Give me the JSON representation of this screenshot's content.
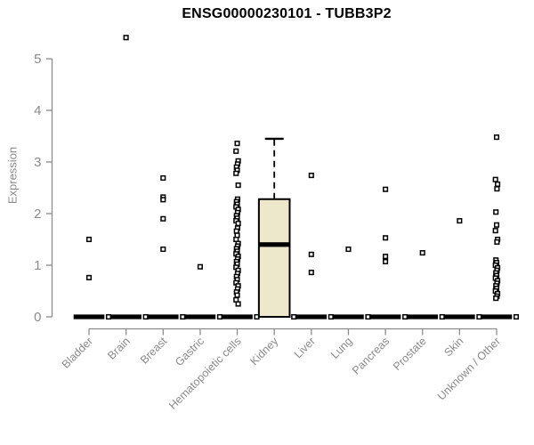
{
  "title": "ENSG00000230101 - TUBB3P2",
  "chart_data": {
    "type": "boxplot",
    "title": "ENSG00000230101 - TUBB3P2",
    "ylabel": "Expression",
    "xlabel": "",
    "axis_range_y": [
      0,
      5
    ],
    "yticks": [
      0,
      1,
      2,
      3,
      4,
      5
    ],
    "grid": false,
    "legend": false,
    "categories": [
      "Bladder",
      "Brain",
      "Breast",
      "Gastric",
      "Hematopoietic cells",
      "Kidney",
      "Liver",
      "Lung",
      "Pancreas",
      "Prostate",
      "Skin",
      "Unknown / Other"
    ],
    "series": [
      {
        "category": "Bladder",
        "box": {
          "whisker_low": 0,
          "q1": 0,
          "median": 0,
          "q3": 0,
          "whisker_high": 0
        },
        "points": [
          1.5,
          0.76,
          0
        ]
      },
      {
        "category": "Brain",
        "box": {
          "whisker_low": 0,
          "q1": 0,
          "median": 0,
          "q3": 0,
          "whisker_high": 0
        },
        "points": [
          5.41,
          0
        ]
      },
      {
        "category": "Breast",
        "box": {
          "whisker_low": 0,
          "q1": 0,
          "median": 0,
          "q3": 0,
          "whisker_high": 0
        },
        "points": [
          2.69,
          2.32,
          2.27,
          1.9,
          1.31,
          0
        ]
      },
      {
        "category": "Gastric",
        "box": {
          "whisker_low": 0,
          "q1": 0,
          "median": 0,
          "q3": 0,
          "whisker_high": 0
        },
        "points": [
          0.97,
          0
        ]
      },
      {
        "category": "Hematopoietic cells",
        "box": {
          "whisker_low": 0,
          "q1": 0,
          "median": 0,
          "q3": 0,
          "whisker_high": 0
        },
        "points": [
          3.36,
          3.21,
          3.02,
          2.96,
          2.9,
          2.84,
          2.78,
          2.55,
          2.28,
          2.23,
          2.18,
          2.13,
          2.08,
          2.02,
          1.96,
          1.91,
          1.86,
          1.81,
          1.72,
          1.66,
          1.58,
          1.5,
          1.42,
          1.37,
          1.32,
          1.27,
          1.22,
          1.17,
          1.12,
          1.07,
          1.02,
          0.96,
          0.9,
          0.84,
          0.78,
          0.72,
          0.66,
          0.6,
          0.54,
          0.48,
          0.42,
          0.33,
          0.25,
          0
        ]
      },
      {
        "category": "Kidney",
        "box": {
          "whisker_low": 0,
          "q1": 0,
          "median": 1.4,
          "q3": 2.28,
          "whisker_high": 3.45
        },
        "points": [
          0
        ]
      },
      {
        "category": "Liver",
        "box": {
          "whisker_low": 0,
          "q1": 0,
          "median": 0,
          "q3": 0,
          "whisker_high": 0
        },
        "points": [
          2.74,
          1.21,
          0.86,
          0
        ]
      },
      {
        "category": "Lung",
        "box": {
          "whisker_low": 0,
          "q1": 0,
          "median": 0,
          "q3": 0,
          "whisker_high": 0
        },
        "points": [
          1.31,
          0
        ]
      },
      {
        "category": "Pancreas",
        "box": {
          "whisker_low": 0,
          "q1": 0,
          "median": 0,
          "q3": 0,
          "whisker_high": 0
        },
        "points": [
          2.47,
          1.53,
          1.17,
          1.07,
          0
        ]
      },
      {
        "category": "Prostate",
        "box": {
          "whisker_low": 0,
          "q1": 0,
          "median": 0,
          "q3": 0,
          "whisker_high": 0
        },
        "points": [
          1.24,
          0
        ]
      },
      {
        "category": "Skin",
        "box": {
          "whisker_low": 0,
          "q1": 0,
          "median": 0,
          "q3": 0,
          "whisker_high": 0
        },
        "points": [
          1.86,
          0
        ]
      },
      {
        "category": "Unknown / Other",
        "box": {
          "whisker_low": 0,
          "q1": 0,
          "median": 0,
          "q3": 0,
          "whisker_high": 0
        },
        "points": [
          3.48,
          2.66,
          2.57,
          2.48,
          2.03,
          1.78,
          1.67,
          1.5,
          1.45,
          1.1,
          1.05,
          1.0,
          0.95,
          0.9,
          0.85,
          0.8,
          0.75,
          0.7,
          0.65,
          0.6,
          0.55,
          0.5,
          0.45,
          0.4,
          0.36,
          0
        ]
      }
    ],
    "colors": {
      "background": "#FFFFFF",
      "axis": "#8C8C8C",
      "tick_label": "#8A8A8A",
      "title": "#000000",
      "box_fill": "#EDE8CC",
      "box_stroke": "#000000",
      "median": "#000000",
      "point_fill": "#FFFFFF",
      "point_stroke": "#000000"
    }
  }
}
